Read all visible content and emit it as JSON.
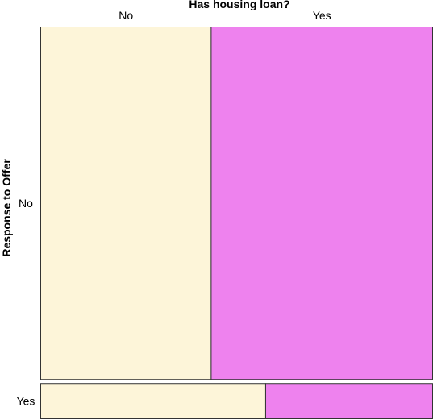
{
  "chart_data": {
    "type": "mosaic",
    "title": "Has housing loan?",
    "xlabel": "Has housing loan?",
    "ylabel": "Response to Offer",
    "x_categories": [
      "No",
      "Yes"
    ],
    "y_categories": [
      "No",
      "Yes"
    ],
    "row_proportions": [
      0.909,
      0.091
    ],
    "cells": [
      {
        "response": "No",
        "housing": "No",
        "share_of_row": 0.435
      },
      {
        "response": "No",
        "housing": "Yes",
        "share_of_row": 0.565
      },
      {
        "response": "Yes",
        "housing": "No",
        "share_of_row": 0.574
      },
      {
        "response": "Yes",
        "housing": "Yes",
        "share_of_row": 0.426
      }
    ],
    "colors": {
      "No": "#fdf5d9",
      "Yes": "#ee82ee",
      "border": "#333333"
    }
  }
}
